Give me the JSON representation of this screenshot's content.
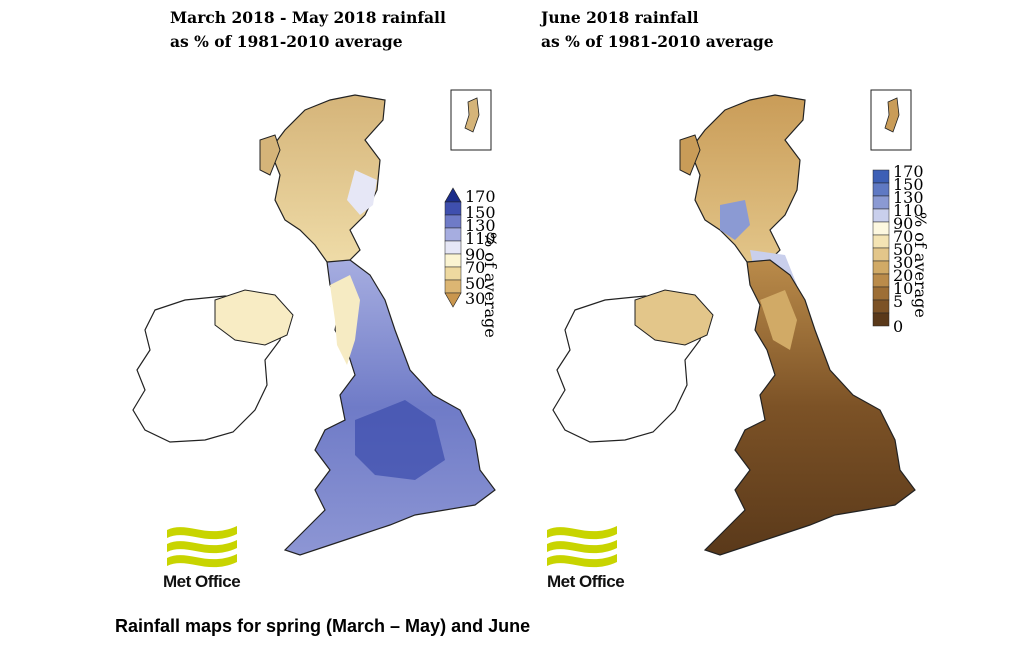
{
  "caption": "Rainfall maps for spring (March – May) and June",
  "panels": {
    "spring": {
      "title_line1": "March 2018 - May 2018 rainfall",
      "title_line2": "as % of 1981-2010 average",
      "legend_axis": "% of average",
      "legend_ticks": [
        "170",
        "150",
        "130",
        "110",
        "90",
        "70",
        "50",
        "30"
      ],
      "legend_colors": [
        "#1c2d8a",
        "#3f4fae",
        "#6f7bc7",
        "#a6ade0",
        "#e6e7f6",
        "#fbf4d2",
        "#eed9a0",
        "#dcb673",
        "#c9964e"
      ],
      "logo_text": "Met Office"
    },
    "june": {
      "title_line1": "June 2018 rainfall",
      "title_line2": "as % of 1981-2010 average",
      "legend_axis": "% of average",
      "legend_ticks": [
        "170",
        "150",
        "130",
        "110",
        "90",
        "70",
        "50",
        "30",
        "20",
        "10",
        "5",
        "0"
      ],
      "legend_colors": [
        "#3d5fb5",
        "#5f79c3",
        "#8b9ad3",
        "#c9cfec",
        "#fdf8e0",
        "#f4e4b4",
        "#e3c68a",
        "#d1aa66",
        "#ba8b4a",
        "#9d6e35",
        "#7c5226",
        "#5a391a"
      ],
      "logo_text": "Met Office"
    }
  },
  "colors": {
    "logo_green": "#c8d400",
    "outline": "#222222"
  }
}
